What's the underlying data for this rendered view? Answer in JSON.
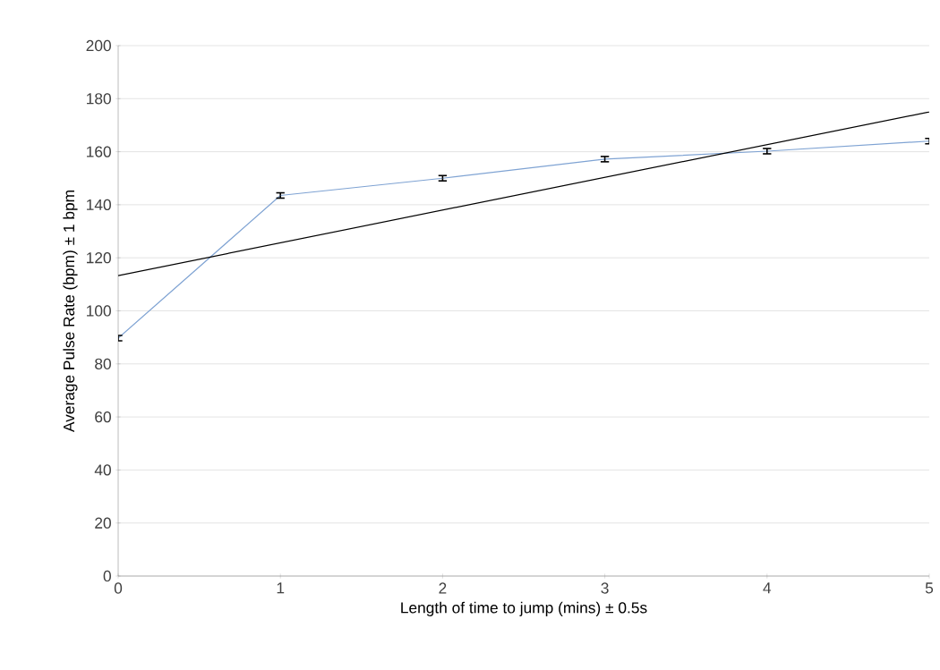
{
  "chart_data": {
    "type": "line",
    "xlabel": "Length of time to jump (mins) ± 0.5s",
    "ylabel": "Average Pulse Rate (bpm) ± 1 bpm",
    "x": [
      0,
      1,
      2,
      3,
      4,
      5
    ],
    "series": [
      {
        "color": "#7fa3d3",
        "values": [
          89.7,
          143.5,
          150,
          157.2,
          160.2,
          164
        ],
        "errors": [
          1,
          1,
          1,
          1,
          1,
          1
        ]
      },
      {
        "type": "line",
        "color": "#000000",
        "x": [
          0,
          5
        ],
        "values": [
          113.3,
          175
        ]
      }
    ],
    "xlim": [
      0,
      5
    ],
    "xticks": [
      0,
      1,
      2,
      3,
      4,
      5
    ],
    "ylim": [
      0,
      200
    ],
    "yticks": [
      0,
      20,
      40,
      60,
      80,
      100,
      120,
      140,
      160,
      180,
      200
    ],
    "grid": "y",
    "marker": "none",
    "line_style": "solid",
    "legend": false
  }
}
